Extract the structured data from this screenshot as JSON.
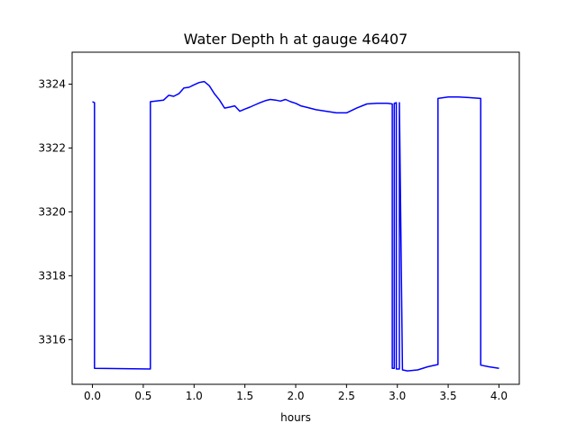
{
  "chart_data": {
    "type": "line",
    "title": "Water Depth h at gauge 46407",
    "xlabel": "hours",
    "ylabel": "",
    "xlim": [
      -0.2,
      4.2
    ],
    "ylim": [
      3314.6,
      3325.0
    ],
    "xticks": [
      0.0,
      0.5,
      1.0,
      1.5,
      2.0,
      2.5,
      3.0,
      3.5,
      4.0
    ],
    "xtick_labels": [
      "0.0",
      "0.5",
      "1.0",
      "1.5",
      "2.0",
      "2.5",
      "3.0",
      "3.5",
      "4.0"
    ],
    "yticks": [
      3316,
      3318,
      3320,
      3322,
      3324
    ],
    "ytick_labels": [
      "3316",
      "3318",
      "3320",
      "3322",
      "3324"
    ],
    "grid": false,
    "series": [
      {
        "color": "#0000ff",
        "x": [
          0.0,
          0.02,
          0.02,
          0.57,
          0.57,
          0.7,
          0.75,
          0.8,
          0.85,
          0.9,
          0.95,
          1.0,
          1.05,
          1.1,
          1.15,
          1.2,
          1.25,
          1.3,
          1.35,
          1.4,
          1.45,
          1.5,
          1.55,
          1.6,
          1.65,
          1.7,
          1.75,
          1.8,
          1.85,
          1.9,
          1.95,
          2.0,
          2.05,
          2.1,
          2.2,
          2.3,
          2.4,
          2.5,
          2.6,
          2.7,
          2.8,
          2.9,
          2.95,
          2.95,
          2.97,
          2.97,
          2.99,
          2.99,
          3.02,
          3.02,
          3.05,
          3.1,
          3.2,
          3.3,
          3.4,
          3.4,
          3.5,
          3.6,
          3.7,
          3.82,
          3.82,
          3.9,
          4.0
        ],
        "y": [
          3323.45,
          3323.42,
          3315.1,
          3315.08,
          3323.45,
          3323.5,
          3323.65,
          3323.62,
          3323.7,
          3323.88,
          3323.9,
          3323.98,
          3324.05,
          3324.08,
          3323.95,
          3323.7,
          3323.5,
          3323.25,
          3323.28,
          3323.32,
          3323.15,
          3323.22,
          3323.28,
          3323.35,
          3323.42,
          3323.48,
          3323.52,
          3323.5,
          3323.47,
          3323.52,
          3323.45,
          3323.4,
          3323.32,
          3323.28,
          3323.2,
          3323.15,
          3323.1,
          3323.1,
          3323.25,
          3323.38,
          3323.4,
          3323.4,
          3323.38,
          3315.1,
          3315.1,
          3323.4,
          3323.42,
          3315.08,
          3315.08,
          3323.42,
          3315.05,
          3315.02,
          3315.05,
          3315.15,
          3315.22,
          3323.55,
          3323.6,
          3323.6,
          3323.58,
          3323.55,
          3315.2,
          3315.15,
          3315.1
        ]
      }
    ]
  }
}
